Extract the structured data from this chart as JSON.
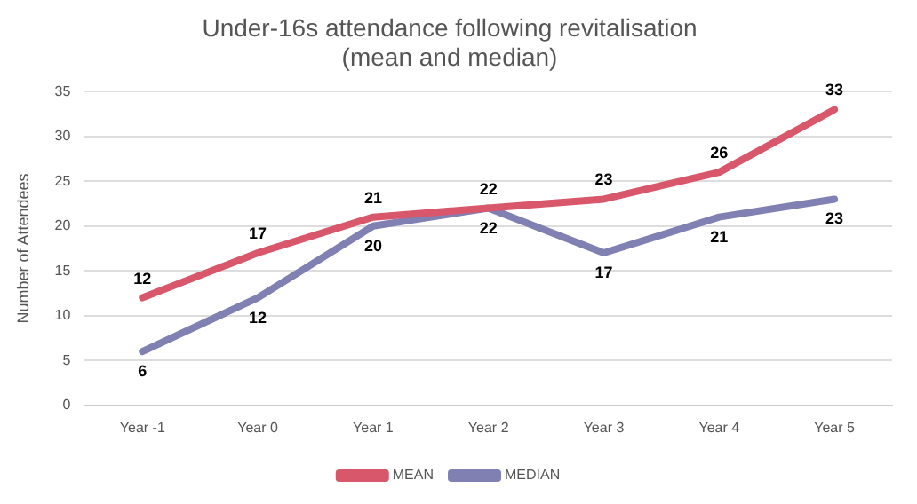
{
  "chart_data": {
    "type": "line",
    "title": [
      "Under-16s attendance following revitalisation",
      "(mean and median)"
    ],
    "ylabel": "Number of Attendees",
    "categories": [
      "Year -1",
      "Year 0",
      "Year 1",
      "Year 2",
      "Year 3",
      "Year 4",
      "Year 5"
    ],
    "series": [
      {
        "name": "MEAN",
        "color": "#d9576b",
        "values": [
          12,
          17,
          21,
          22,
          23,
          26,
          33
        ]
      },
      {
        "name": "MEDIAN",
        "color": "#8080b3",
        "values": [
          6,
          12,
          20,
          22,
          17,
          21,
          23
        ]
      }
    ],
    "ylim": [
      0,
      35
    ],
    "yticks": [
      0,
      5,
      10,
      15,
      20,
      25,
      30,
      35
    ],
    "grid": "y",
    "legend": "bottom",
    "marker": "none",
    "line_style": "solid",
    "data_labels": true
  }
}
